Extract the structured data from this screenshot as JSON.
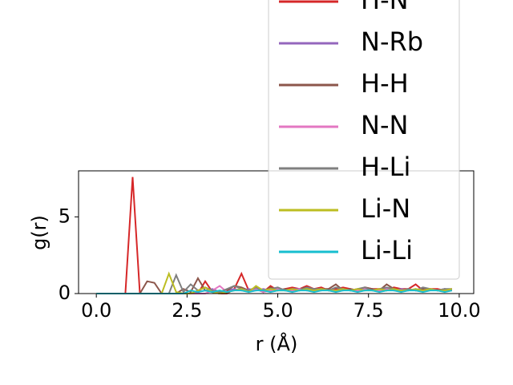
{
  "chart_data": {
    "type": "line",
    "xlabel": "r (Å)",
    "ylabel": "g(r)",
    "xlim": [
      -0.49,
      10.4
    ],
    "ylim": [
      0,
      8
    ],
    "xticks": [
      {
        "value": 0,
        "label": "0.0"
      },
      2.5,
      {
        "value": 5,
        "label": "5.0"
      },
      7.5,
      {
        "value": 10,
        "label": "10.0"
      }
    ],
    "yticks": [
      0,
      5
    ],
    "legend": "upper right",
    "x": [
      0,
      0.2,
      0.4,
      0.6,
      0.8,
      1.0,
      1.2,
      1.4,
      1.6,
      1.8,
      2.0,
      2.2,
      2.4,
      2.6,
      2.8,
      3.0,
      3.2,
      3.4,
      3.6,
      3.8,
      4.0,
      4.2,
      4.4,
      4.6,
      4.8,
      5.0,
      5.2,
      5.4,
      5.6,
      5.8,
      6.0,
      6.2,
      6.4,
      6.6,
      6.8,
      7.0,
      7.2,
      7.4,
      7.6,
      7.8,
      8.0,
      8.2,
      8.4,
      8.6,
      8.8,
      9.0,
      9.2,
      9.4,
      9.6,
      9.8
    ],
    "series": [
      {
        "name": "H-N",
        "color": "#d62728",
        "values": [
          0,
          0,
          0,
          0,
          0,
          7.6,
          0,
          0,
          0,
          0,
          0,
          0,
          0,
          0,
          0,
          0.8,
          0.1,
          0,
          0,
          0.3,
          1.3,
          0.2,
          0.4,
          0.1,
          0.5,
          0.2,
          0.3,
          0.4,
          0.3,
          0.5,
          0.3,
          0.4,
          0.2,
          0.3,
          0.4,
          0.3,
          0.2,
          0.4,
          0.3,
          0.3,
          0.2,
          0.4,
          0.3,
          0.3,
          0.6,
          0.2,
          0.3,
          0.3,
          0.2,
          0.3
        ]
      },
      {
        "name": "N-Rb",
        "color": "#9467bd",
        "values": [
          0,
          0,
          0,
          0,
          0,
          0,
          0,
          0,
          0,
          0,
          0,
          0,
          0,
          0,
          0.1,
          0.2,
          0.3,
          0.1,
          0.2,
          0.3,
          0.2,
          0.3,
          0.2,
          0.3,
          0.2,
          0.3,
          0.2,
          0.3,
          0.3,
          0.2,
          0.3,
          0.2,
          0.3,
          0.2,
          0.3,
          0.2,
          0.3,
          0.2,
          0.3,
          0.2,
          0.3,
          0.2,
          0.3,
          0.2,
          0.3,
          0.2,
          0.3,
          0.2,
          0.3,
          0.2
        ]
      },
      {
        "name": "H-H",
        "color": "#8c564b",
        "values": [
          0,
          0,
          0,
          0,
          0,
          0,
          0,
          0.8,
          0.7,
          0,
          0,
          0,
          0.3,
          0.1,
          1.0,
          0.2,
          0.1,
          0,
          0.2,
          0.5,
          0.4,
          0.2,
          0.3,
          0.1,
          0.4,
          0.2,
          0.3,
          0.2,
          0.3,
          0.4,
          0.2,
          0.3,
          0.3,
          0.6,
          0.2,
          0.3,
          0.2,
          0.4,
          0.3,
          0.2,
          0.6,
          0.3,
          0.2,
          0.3,
          0.2,
          0.3,
          0.3,
          0.2,
          0.3,
          0.2
        ]
      },
      {
        "name": "N-N",
        "color": "#e377c2",
        "values": [
          0,
          0,
          0,
          0,
          0,
          0,
          0,
          0,
          0,
          0,
          0,
          0,
          0,
          0,
          0,
          0,
          0.2,
          0.5,
          0.1,
          0.2,
          0.3,
          0.2,
          0.3,
          0.1,
          0.2,
          0.3,
          0.2,
          0.2,
          0.3,
          0.2,
          0.2,
          0.3,
          0.2,
          0.2,
          0.3,
          0.2,
          0.2,
          0.3,
          0.2,
          0.2,
          0.3,
          0.2,
          0.2,
          0.3,
          0.2,
          0.2,
          0.3,
          0.2,
          0.2,
          0.3
        ]
      },
      {
        "name": "H-Li",
        "color": "#7f7f7f",
        "values": [
          0,
          0,
          0,
          0,
          0,
          0,
          0,
          0,
          0,
          0,
          0,
          1.2,
          0.1,
          0.6,
          0.2,
          0.4,
          0.2,
          0.1,
          0.3,
          0.5,
          0.3,
          0.2,
          0.4,
          0.2,
          0.3,
          0.4,
          0.2,
          0.3,
          0.2,
          0.4,
          0.3,
          0.3,
          0.2,
          0.4,
          0.3,
          0.2,
          0.3,
          0.4,
          0.2,
          0.3,
          0.4,
          0.3,
          0.2,
          0.3,
          0.2,
          0.4,
          0.3,
          0.2,
          0.3,
          0.3
        ]
      },
      {
        "name": "Li-N",
        "color": "#bcbd22",
        "values": [
          0,
          0,
          0,
          0,
          0,
          0,
          0,
          0,
          0,
          0,
          1.3,
          0.1,
          0,
          0,
          0.2,
          0.4,
          0.1,
          0,
          0.1,
          0.2,
          0.3,
          0.1,
          0.5,
          0.2,
          0.3,
          0.2,
          0.2,
          0.3,
          0.2,
          0.3,
          0.2,
          0.3,
          0.2,
          0.2,
          0.3,
          0.2,
          0.3,
          0.2,
          0.2,
          0.3,
          0.2,
          0.3,
          0.2,
          0.2,
          0.3,
          0.2,
          0.3,
          0.2,
          0.2,
          0.3
        ]
      },
      {
        "name": "Li-Li",
        "color": "#17becf",
        "values": [
          0,
          0,
          0,
          0,
          0,
          0,
          0,
          0,
          0,
          0,
          0,
          0,
          0,
          0.2,
          0.1,
          0.2,
          0.1,
          0.2,
          0.1,
          0.2,
          0.2,
          0.1,
          0.2,
          0.2,
          0.1,
          0.2,
          0.2,
          0.1,
          0.2,
          0.2,
          0.1,
          0.2,
          0.2,
          0.1,
          0.2,
          0.2,
          0.1,
          0.2,
          0.2,
          0.1,
          0.2,
          0.2,
          0.1,
          0.2,
          0.2,
          0.1,
          0.2,
          0.2,
          0.1,
          0.2
        ]
      }
    ]
  }
}
